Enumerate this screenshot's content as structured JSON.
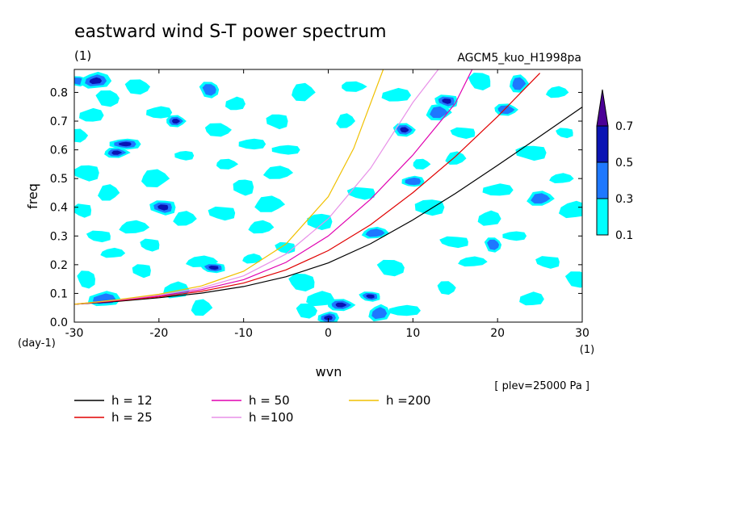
{
  "chart_data": {
    "type": "heatmap",
    "title": "eastward wind S-T power spectrum",
    "units": "(1)",
    "model": "AGCM5_kuo_H1998pa",
    "xlabel": "wvn",
    "xunits": "(1)",
    "ylabel": "freq",
    "yunits": "(day-1)",
    "level_note": "[ plev=25000 Pa ]",
    "xlim": [
      -30,
      30
    ],
    "ylim": [
      0,
      0.88
    ],
    "x_ticks": [
      "-30",
      "-20",
      "-10",
      "0",
      "10",
      "20",
      "30"
    ],
    "x_tick_values": [
      -30,
      -20,
      -10,
      0,
      10,
      20,
      30
    ],
    "y_ticks": [
      "0.0",
      "0.1",
      "0.2",
      "0.3",
      "0.4",
      "0.5",
      "0.6",
      "0.7",
      "0.8"
    ],
    "y_tick_values": [
      0,
      0.1,
      0.2,
      0.3,
      0.4,
      0.5,
      0.6,
      0.7,
      0.8
    ],
    "contour_levels": [
      {
        "label": "0.1",
        "value": 0.1,
        "color": "#00ffff"
      },
      {
        "label": "0.3",
        "value": 0.3,
        "color": "#1e78ff"
      },
      {
        "label": "0.5",
        "value": 0.5,
        "color": "#0a14b4"
      },
      {
        "label": "0.7",
        "value": 0.7,
        "color": "#4b0096"
      }
    ],
    "series": [
      {
        "name": "h = 12",
        "color": "#000000",
        "x": [
          -30,
          -25,
          -20,
          -15,
          -10,
          -5,
          0,
          5,
          10,
          15,
          20,
          25,
          30
        ],
        "y": [
          0.062,
          0.072,
          0.085,
          0.101,
          0.124,
          0.158,
          0.206,
          0.273,
          0.356,
          0.448,
          0.546,
          0.647,
          0.749
        ]
      },
      {
        "name": "h = 25",
        "color": "#e00000",
        "x": [
          -30,
          -25,
          -20,
          -15,
          -10,
          -5,
          0,
          5,
          10,
          15,
          20,
          25
        ],
        "y": [
          0.062,
          0.074,
          0.088,
          0.107,
          0.136,
          0.182,
          0.249,
          0.339,
          0.451,
          0.576,
          0.716,
          0.867
        ]
      },
      {
        "name": "h = 50",
        "color": "#e000b0",
        "x": [
          -30,
          -25,
          -20,
          -15,
          -10,
          -5,
          0,
          5,
          10,
          15,
          17
        ],
        "y": [
          0.062,
          0.076,
          0.091,
          0.113,
          0.148,
          0.208,
          0.3,
          0.428,
          0.582,
          0.762,
          0.88
        ]
      },
      {
        "name": "h =100",
        "color": "#e890e8",
        "x": [
          -30,
          -25,
          -20,
          -15,
          -10,
          -5,
          0,
          5,
          10,
          13
        ],
        "y": [
          0.062,
          0.077,
          0.094,
          0.119,
          0.161,
          0.237,
          0.36,
          0.536,
          0.765,
          0.88
        ]
      },
      {
        "name": "h =200",
        "color": "#f0c000",
        "x": [
          -30,
          -25,
          -20,
          -15,
          -10,
          -5,
          0,
          3,
          6.5
        ],
        "y": [
          0.062,
          0.078,
          0.097,
          0.126,
          0.177,
          0.272,
          0.437,
          0.605,
          0.88
        ]
      }
    ],
    "field_blobs": [
      [
        -29.5,
        0.84,
        0.3
      ],
      [
        -27.5,
        0.84,
        0.6
      ],
      [
        -26,
        0.78,
        0.1
      ],
      [
        -28,
        0.72,
        0.1
      ],
      [
        -29.5,
        0.65,
        0.2
      ],
      [
        -24,
        0.62,
        0.5
      ],
      [
        -25,
        0.59,
        0.5
      ],
      [
        -28.5,
        0.52,
        0.1
      ],
      [
        -26,
        0.45,
        0.1
      ],
      [
        -29,
        0.39,
        0.1
      ],
      [
        -23,
        0.33,
        0.1
      ],
      [
        -27,
        0.3,
        0.1
      ],
      [
        -25.5,
        0.24,
        0.1
      ],
      [
        -28.5,
        0.15,
        0.1
      ],
      [
        -26.5,
        0.08,
        0.3
      ],
      [
        -22.5,
        0.82,
        0.1
      ],
      [
        -20,
        0.73,
        0.1
      ],
      [
        -18,
        0.7,
        0.5
      ],
      [
        -17,
        0.58,
        0.1
      ],
      [
        -20.5,
        0.5,
        0.1
      ],
      [
        -19.5,
        0.4,
        0.5
      ],
      [
        -17,
        0.36,
        0.1
      ],
      [
        -21,
        0.27,
        0.1
      ],
      [
        -15,
        0.21,
        0.1
      ],
      [
        -13.5,
        0.19,
        0.5
      ],
      [
        -18,
        0.11,
        0.1
      ],
      [
        -14,
        0.81,
        0.3
      ],
      [
        -11,
        0.76,
        0.1
      ],
      [
        -13,
        0.67,
        0.1
      ],
      [
        -9,
        0.62,
        0.1
      ],
      [
        -12,
        0.55,
        0.1
      ],
      [
        -10,
        0.47,
        0.1
      ],
      [
        -7,
        0.41,
        0.1
      ],
      [
        -12.5,
        0.38,
        0.1
      ],
      [
        -8,
        0.33,
        0.1
      ],
      [
        -5,
        0.26,
        0.1
      ],
      [
        -9,
        0.22,
        0.1
      ],
      [
        -3,
        0.14,
        0.1
      ],
      [
        -1,
        0.08,
        0.1
      ],
      [
        -2.5,
        0.04,
        0.1
      ],
      [
        0,
        0.015,
        0.6
      ],
      [
        1.5,
        0.06,
        0.5
      ],
      [
        -5,
        0.6,
        0.1
      ],
      [
        -3,
        0.8,
        0.1
      ],
      [
        -6,
        0.7,
        0.1
      ],
      [
        2,
        0.7,
        0.1
      ],
      [
        4,
        0.45,
        0.1
      ],
      [
        5.5,
        0.31,
        0.3
      ],
      [
        5,
        0.09,
        0.5
      ],
      [
        6,
        0.03,
        0.3
      ],
      [
        7.5,
        0.19,
        0.1
      ],
      [
        8,
        0.79,
        0.1
      ],
      [
        9,
        0.67,
        0.5
      ],
      [
        10,
        0.49,
        0.3
      ],
      [
        11,
        0.55,
        0.1
      ],
      [
        12,
        0.4,
        0.1
      ],
      [
        13,
        0.73,
        0.3
      ],
      [
        14,
        0.77,
        0.5
      ],
      [
        15,
        0.57,
        0.1
      ],
      [
        15,
        0.28,
        0.1
      ],
      [
        17,
        0.21,
        0.1
      ],
      [
        18,
        0.84,
        0.1
      ],
      [
        19,
        0.36,
        0.1
      ],
      [
        19.5,
        0.27,
        0.3
      ],
      [
        20,
        0.46,
        0.1
      ],
      [
        21,
        0.74,
        0.3
      ],
      [
        22,
        0.3,
        0.1
      ],
      [
        22.5,
        0.83,
        0.3
      ],
      [
        24,
        0.59,
        0.1
      ],
      [
        25,
        0.43,
        0.3
      ],
      [
        26,
        0.21,
        0.1
      ],
      [
        27,
        0.8,
        0.1
      ],
      [
        28,
        0.66,
        0.1
      ],
      [
        29,
        0.39,
        0.1
      ],
      [
        29.5,
        0.15,
        0.1
      ],
      [
        24,
        0.08,
        0.1
      ],
      [
        14,
        0.12,
        0.1
      ],
      [
        9,
        0.04,
        0.1
      ],
      [
        3,
        0.82,
        0.1
      ],
      [
        -1,
        0.35,
        0.1
      ],
      [
        -15,
        0.05,
        0.1
      ],
      [
        -22,
        0.18,
        0.1
      ],
      [
        -6,
        0.52,
        0.1
      ],
      [
        16,
        0.66,
        0.1
      ],
      [
        27.5,
        0.5,
        0.1
      ]
    ]
  }
}
